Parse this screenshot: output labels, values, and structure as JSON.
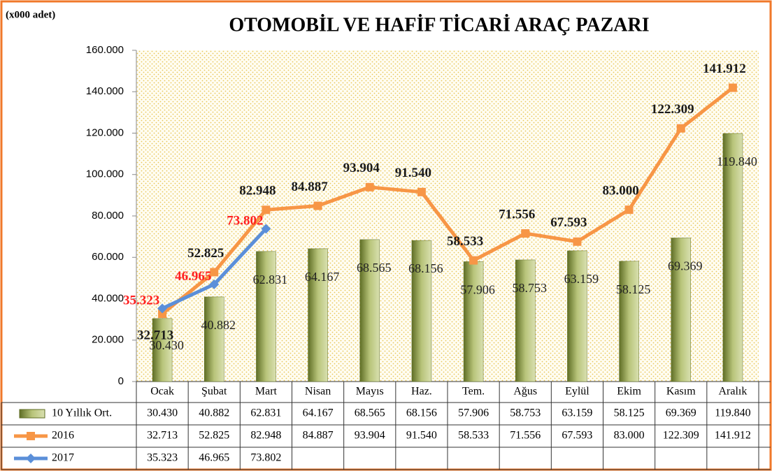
{
  "chart_data": {
    "type": "bar-line",
    "title": "OTOMOBİL VE HAFİF TİCARİ ARAÇ PAZARI",
    "unit_label": "(x000 adet)",
    "categories": [
      "Ocak",
      "Şubat",
      "Mart",
      "Nisan",
      "Mayıs",
      "Haz.",
      "Tem.",
      "Ağus",
      "Eylül",
      "Ekim",
      "Kasım",
      "Aralık"
    ],
    "series": [
      {
        "name": "10 Yıllık Ort.",
        "type": "bar",
        "color": "#8c9c4a",
        "values": [
          30430,
          40882,
          62831,
          64167,
          68565,
          68156,
          57906,
          58753,
          63159,
          58125,
          69369,
          119840
        ],
        "value_labels": [
          "30.430",
          "40.882",
          "62.831",
          "64.167",
          "68.565",
          "68.156",
          "57.906",
          "58.753",
          "63.159",
          "58.125",
          "69.369",
          "119.840"
        ]
      },
      {
        "name": "2016",
        "type": "line",
        "color": "#f79646",
        "label_color": "#1a1a1a",
        "values": [
          32713,
          52825,
          82948,
          84887,
          93904,
          91540,
          58533,
          71556,
          67593,
          83000,
          122309,
          141912
        ],
        "value_labels": [
          "32.713",
          "52.825",
          "82.948",
          "84.887",
          "93.904",
          "91.540",
          "58.533",
          "71.556",
          "67.593",
          "83.000",
          "122.309",
          "141.912"
        ]
      },
      {
        "name": "2017",
        "type": "line",
        "color": "#5b8fd9",
        "label_color": "#ff2020",
        "values": [
          35323,
          46965,
          73802,
          null,
          null,
          null,
          null,
          null,
          null,
          null,
          null,
          null
        ],
        "value_labels": [
          "35.323",
          "46.965",
          "73.802",
          null,
          null,
          null,
          null,
          null,
          null,
          null,
          null,
          null
        ]
      }
    ],
    "ylim": [
      0,
      160000
    ],
    "yticks": [
      0,
      {
        "value": 20000,
        "label": "20.000"
      },
      {
        "value": 40000,
        "label": "40.000"
      },
      {
        "value": 60000,
        "label": "60.000"
      },
      {
        "value": 80000,
        "label": "80.000"
      },
      {
        "value": 100000,
        "label": "100.000"
      },
      {
        "value": 120000,
        "label": "120.000"
      },
      {
        "value": 140000,
        "label": "140.000"
      },
      {
        "value": 160000,
        "label": "160.000"
      }
    ],
    "grid": false,
    "data_table": true
  }
}
